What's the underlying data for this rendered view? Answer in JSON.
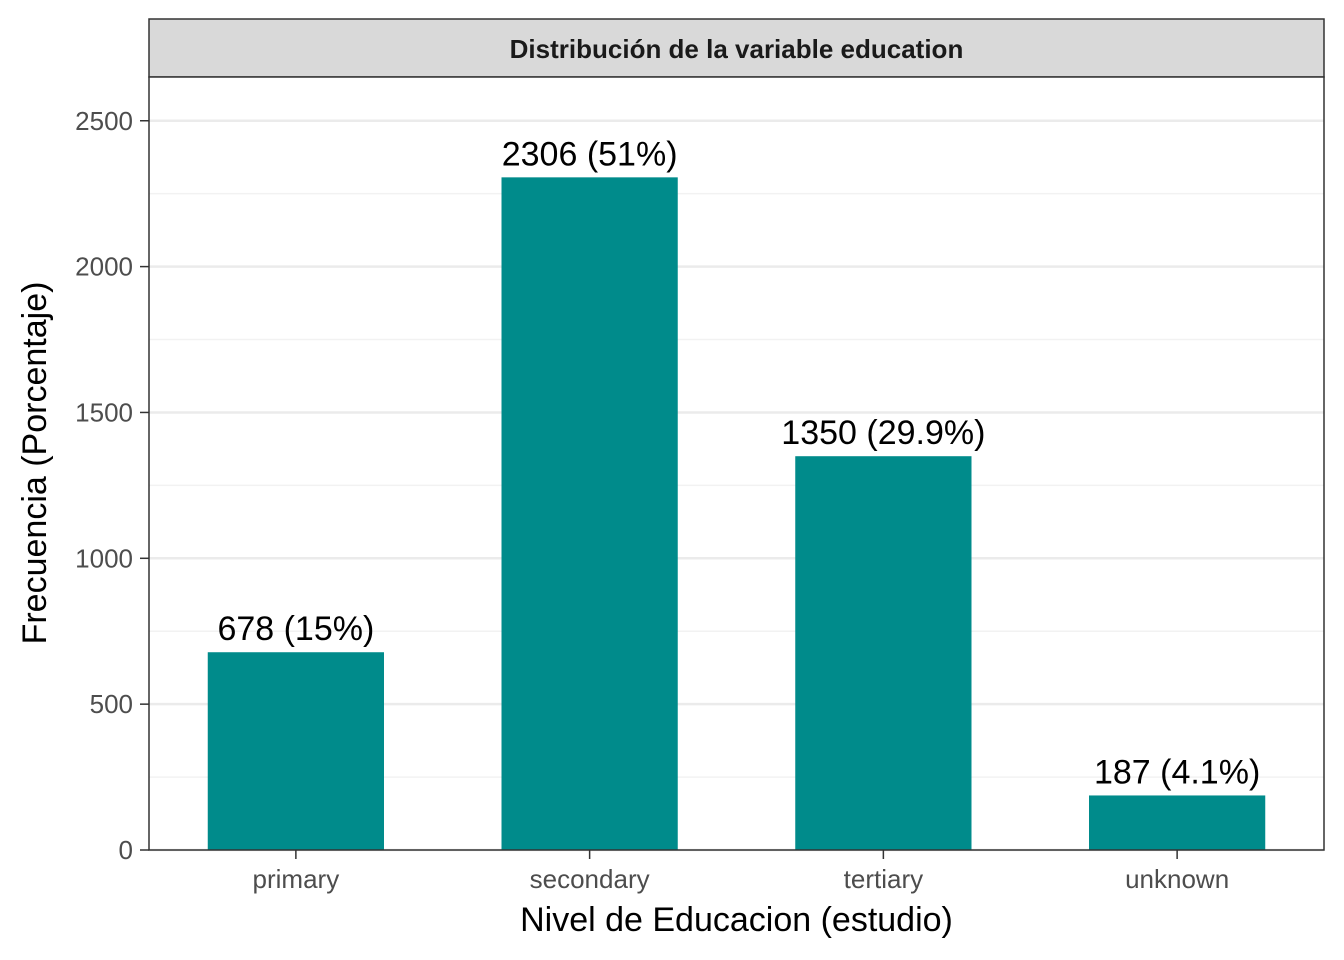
{
  "chart_data": {
    "type": "bar",
    "title": "Distribución de la variable education",
    "xlabel": "Nivel de Educacion (estudio)",
    "ylabel": "Frecuencia (Porcentaje)",
    "categories": [
      "primary",
      "secondary",
      "tertiary",
      "unknown"
    ],
    "values": [
      678,
      2306,
      1350,
      187
    ],
    "labels": [
      "678 (15%)",
      "2306 (51%)",
      "1350 (29.9%)",
      "187 (4.1%)"
    ],
    "ylim": [
      0,
      2650
    ],
    "yticks": [
      0,
      500,
      1000,
      1500,
      2000,
      2500
    ],
    "grid": true,
    "legend": "none",
    "bar_color": "#008B8B"
  }
}
